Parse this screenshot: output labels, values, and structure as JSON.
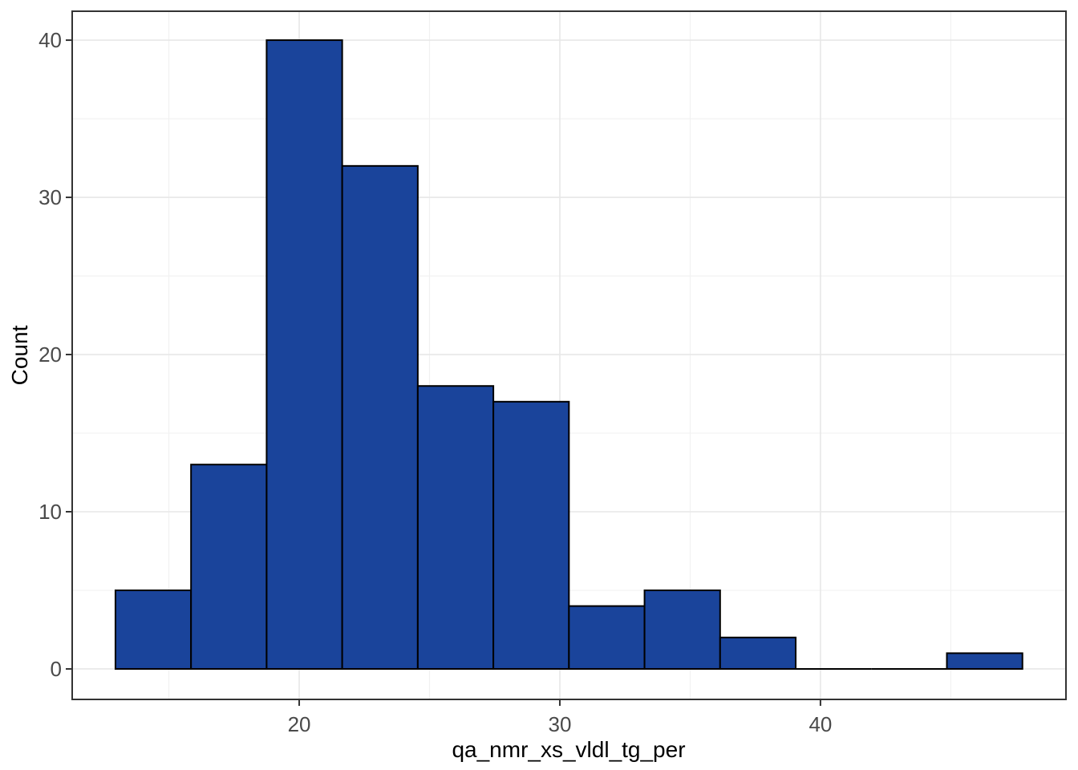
{
  "chart_data": {
    "type": "bar",
    "subtype": "histogram",
    "title": "",
    "xlabel": "qa_nmr_xs_vldl_tg_per",
    "ylabel": "Count",
    "bins": [
      {
        "x0": 12.95,
        "x1": 15.85,
        "count": 5
      },
      {
        "x0": 15.85,
        "x1": 18.75,
        "count": 13
      },
      {
        "x0": 18.75,
        "x1": 21.65,
        "count": 40
      },
      {
        "x0": 21.65,
        "x1": 24.55,
        "count": 32
      },
      {
        "x0": 24.55,
        "x1": 27.45,
        "count": 18
      },
      {
        "x0": 27.45,
        "x1": 30.35,
        "count": 17
      },
      {
        "x0": 30.35,
        "x1": 33.25,
        "count": 4
      },
      {
        "x0": 33.25,
        "x1": 36.15,
        "count": 5
      },
      {
        "x0": 36.15,
        "x1": 39.05,
        "count": 2
      },
      {
        "x0": 39.05,
        "x1": 41.95,
        "count": 0
      },
      {
        "x0": 41.95,
        "x1": 44.85,
        "count": 0
      },
      {
        "x0": 44.85,
        "x1": 47.75,
        "count": 1
      }
    ],
    "bin_width": 2.9,
    "x_ticks_major": [
      20,
      30,
      40
    ],
    "x_ticks_minor": [
      15,
      25,
      35,
      45
    ],
    "y_ticks_major": [
      0,
      10,
      20,
      30,
      40
    ],
    "y_ticks_minor": [
      5,
      15,
      25,
      35
    ],
    "x_domain": [
      11.29,
      49.42
    ],
    "y_domain": [
      -1.94,
      41.84
    ],
    "ylim": [
      0,
      40
    ],
    "grid": true,
    "legend_position": "none",
    "colors": {
      "bar_fill": "#1A449B",
      "bar_stroke": "#000000",
      "panel_border": "#333333",
      "panel_background": "#FFFFFF",
      "grid_major": "#E7E7E7",
      "grid_minor": "#F1F1F1",
      "tick_mark": "#333333",
      "tick_label": "#4A4A4A",
      "axis_title": "#000000",
      "background": "#FFFFFF"
    }
  }
}
